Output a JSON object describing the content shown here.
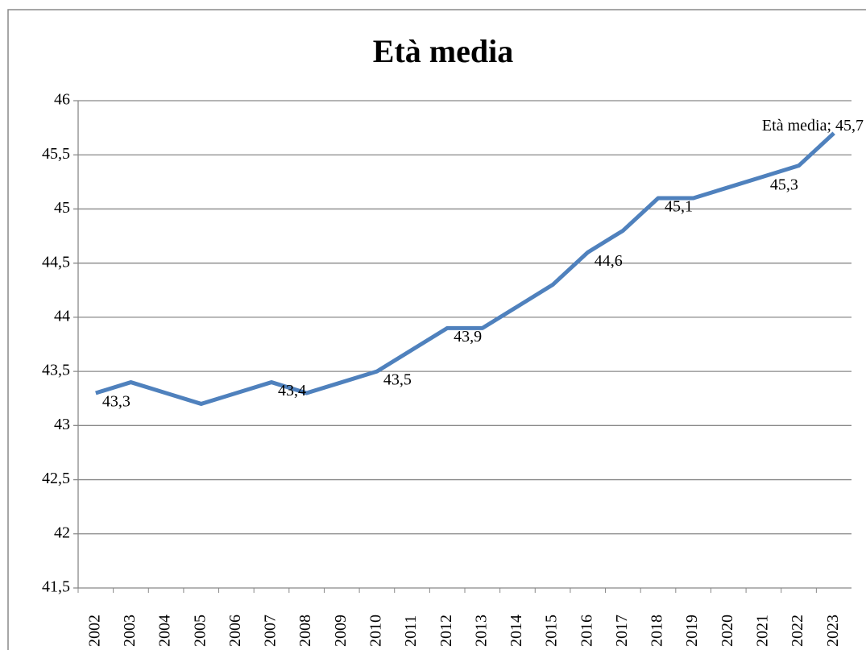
{
  "chart_data": {
    "type": "line",
    "title": "Età media",
    "categories": [
      "2002",
      "2003",
      "2004",
      "2005",
      "2006",
      "2007",
      "2008",
      "2009",
      "2010",
      "2011",
      "2012",
      "2013",
      "2014",
      "2015",
      "2016",
      "2017",
      "2018",
      "2019",
      "2020",
      "2021",
      "2022",
      "2023"
    ],
    "series": [
      {
        "name": "Età media",
        "color": "#4f81bd",
        "values": [
          43.3,
          43.4,
          43.3,
          43.2,
          43.3,
          43.4,
          43.3,
          43.4,
          43.5,
          43.7,
          43.9,
          43.9,
          44.1,
          44.3,
          44.6,
          44.8,
          45.1,
          45.1,
          45.2,
          45.3,
          45.4,
          45.7
        ],
        "value_labels": [
          "43,3",
          null,
          null,
          null,
          null,
          "43,4",
          null,
          null,
          "43,5",
          null,
          "43,9",
          null,
          null,
          null,
          "44,6",
          null,
          "45,1",
          null,
          null,
          "45,3",
          null,
          "Età media; 45,7"
        ]
      }
    ],
    "ylim": [
      41.5,
      46
    ],
    "yticks": [
      {
        "value": 41.5,
        "label": "41,5"
      },
      42,
      {
        "value": 42.5,
        "label": "42,5"
      },
      43,
      {
        "value": 43.5,
        "label": "43,5"
      },
      44,
      {
        "value": 44.5,
        "label": "44,5"
      },
      45,
      {
        "value": 45.5,
        "label": "45,5"
      },
      46
    ],
    "grid": true
  }
}
